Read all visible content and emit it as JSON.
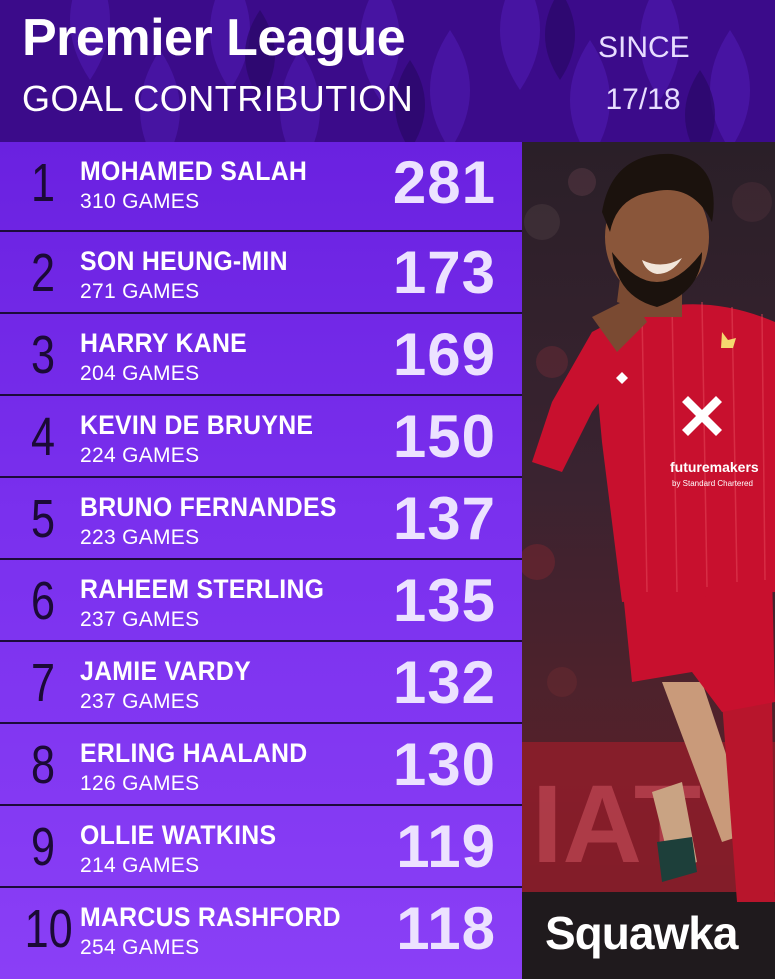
{
  "header": {
    "title": "Premier League",
    "subtitle": "GOAL CONTRIBUTION",
    "since_label": "SINCE",
    "since_value": "17/18"
  },
  "rows": [
    {
      "rank": "1",
      "name": "MOHAMED SALAH",
      "games": "310 GAMES",
      "value": "281"
    },
    {
      "rank": "2",
      "name": "SON HEUNG-MIN",
      "games": "271 GAMES",
      "value": "173"
    },
    {
      "rank": "3",
      "name": "HARRY KANE",
      "games": "204 GAMES",
      "value": "169"
    },
    {
      "rank": "4",
      "name": "KEVIN DE BRUYNE",
      "games": "224 GAMES",
      "value": "150"
    },
    {
      "rank": "5",
      "name": "BRUNO FERNANDES",
      "games": "223 GAMES",
      "value": "137"
    },
    {
      "rank": "6",
      "name": "RAHEEM STERLING",
      "games": "237 GAMES",
      "value": "135"
    },
    {
      "rank": "7",
      "name": "JAMIE VARDY",
      "games": "237 GAMES",
      "value": "132"
    },
    {
      "rank": "8",
      "name": "ERLING HAALAND",
      "games": "126 GAMES",
      "value": "130"
    },
    {
      "rank": "9",
      "name": "OLLIE WATKINS",
      "games": "214 GAMES",
      "value": "119"
    },
    {
      "rank": "10",
      "name": "MARCUS RASHFORD",
      "games": "254 GAMES",
      "value": "118"
    }
  ],
  "photo": {
    "sponsor_text": "futuremakers",
    "sponsor_sub": "by Standard Chartered"
  },
  "brand": "Squawka",
  "colors": {
    "header_bg": "#3b0b8a",
    "list_gradient_top": "#6a21e0",
    "list_gradient_bottom": "#8a3ff6",
    "rank_color": "#1b0a36",
    "kit_red": "#c8102e"
  }
}
